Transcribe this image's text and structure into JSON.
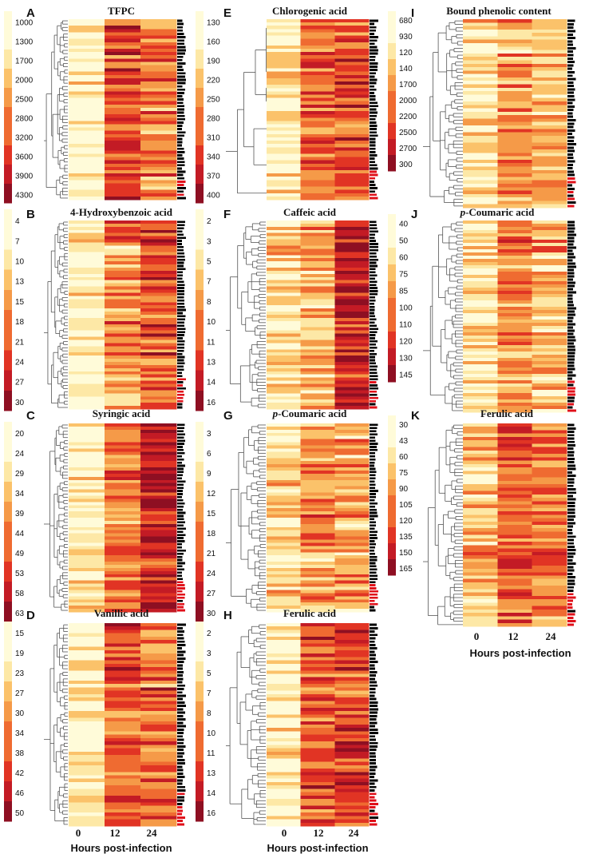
{
  "chart_data": {
    "type": "heatmap",
    "colormap": [
      "#fffbd9",
      "#fde8a6",
      "#fbc26a",
      "#f59a48",
      "#ef6b31",
      "#e13424",
      "#c31b25",
      "#8e0f22"
    ],
    "row_label_colors": [
      "#000000",
      "#e0101a"
    ],
    "x_categories": [
      "0",
      "12",
      "24"
    ],
    "x_axis_label": "Hours post-infection",
    "panels": [
      {
        "letter": "A",
        "title": "TFPC",
        "scale": [
          "1000",
          "1300",
          "1700",
          "2000",
          "2500",
          "2800",
          "3200",
          "3600",
          "3900",
          "4300"
        ],
        "rows": 55,
        "profile": [
          0.05,
          0.68,
          0.52
        ],
        "axis": false
      },
      {
        "letter": "B",
        "title": "4-Hydroxybenzoic  acid",
        "scale": [
          "4",
          "7",
          "10",
          "13",
          "15",
          "18",
          "21",
          "24",
          "27",
          "30"
        ],
        "rows": 60,
        "profile": [
          0.12,
          0.45,
          0.62
        ],
        "axis": false
      },
      {
        "letter": "C",
        "title": "Syringic acid",
        "scale": [
          "20",
          "24",
          "29",
          "34",
          "39",
          "44",
          "49",
          "53",
          "58",
          "63"
        ],
        "rows": 60,
        "profile": [
          0.1,
          0.5,
          0.78
        ],
        "axis": false
      },
      {
        "letter": "D",
        "title": "Vanillic acid",
        "scale": [
          "15",
          "19",
          "23",
          "27",
          "30",
          "34",
          "38",
          "42",
          "46",
          "50"
        ],
        "rows": 60,
        "profile": [
          0.1,
          0.6,
          0.55
        ],
        "axis": true
      },
      {
        "letter": "E",
        "title": "Chlorogenic acid",
        "scale": [
          "130",
          "160",
          "190",
          "220",
          "250",
          "280",
          "310",
          "340",
          "370",
          "400"
        ],
        "rows": 55,
        "profile": [
          0.12,
          0.55,
          0.62
        ],
        "axis": false
      },
      {
        "letter": "F",
        "title": "Caffeic acid",
        "scale": [
          "2",
          "3",
          "5",
          "7",
          "8",
          "10",
          "11",
          "13",
          "14",
          "16"
        ],
        "rows": 60,
        "profile": [
          0.2,
          0.35,
          0.78
        ],
        "axis": false
      },
      {
        "letter": "G",
        "title": "p-Coumaric acid",
        "scale": [
          "3",
          "6",
          "9",
          "12",
          "15",
          "18",
          "21",
          "24",
          "27",
          "30"
        ],
        "rows": 60,
        "profile": [
          0.2,
          0.4,
          0.35
        ],
        "axis": false
      },
      {
        "letter": "H",
        "title": "Ferulic acid",
        "scale": [
          "2",
          "3",
          "5",
          "7",
          "8",
          "10",
          "11",
          "13",
          "14",
          "16"
        ],
        "rows": 60,
        "profile": [
          0.1,
          0.62,
          0.65
        ],
        "axis": true
      },
      {
        "letter": "I",
        "title": "Bound phenolic content",
        "scale": [
          "680",
          "930",
          "120",
          "140",
          "1700",
          "2000",
          "2200",
          "2500",
          "2700",
          "300"
        ],
        "rows": 55,
        "profile": [
          0.15,
          0.4,
          0.3
        ],
        "axis": false
      },
      {
        "letter": "J",
        "title": "p-Coumaric acid",
        "scale": [
          "40",
          "50",
          "60",
          "75",
          "85",
          "100",
          "110",
          "120",
          "130",
          "145"
        ],
        "rows": 60,
        "profile": [
          0.15,
          0.45,
          0.3
        ],
        "axis": false
      },
      {
        "letter": "K",
        "title": "Ferulic acid",
        "scale": [
          "30",
          "43",
          "60",
          "75",
          "90",
          "105",
          "120",
          "135",
          "150",
          "165"
        ],
        "rows": 60,
        "profile": [
          0.35,
          0.6,
          0.5
        ],
        "axis": true
      }
    ]
  }
}
